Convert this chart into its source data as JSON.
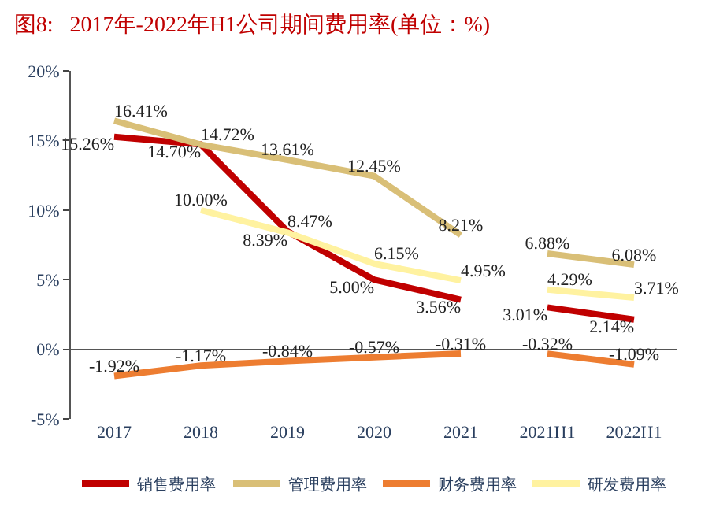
{
  "chart_data": {
    "type": "line",
    "title": "图8:   2017年-2022年H1公司期间费用率(单位：%)",
    "categories": [
      "2017",
      "2018",
      "2019",
      "2020",
      "2021",
      "2021H1",
      "2022H1"
    ],
    "series": [
      {
        "name": "销售费用率",
        "color": "#c00000",
        "values": [
          15.26,
          14.72,
          8.47,
          5.0,
          3.56,
          null,
          null
        ],
        "value_labels": [
          "15.26%",
          "14.72%",
          "8.47%",
          "5.00%",
          "3.56%",
          null,
          null
        ]
      },
      {
        "name": "管理费用率",
        "color": "#d9bf77",
        "values": [
          16.41,
          14.7,
          13.61,
          12.45,
          8.21,
          null,
          null
        ],
        "value_labels": [
          "16.41%",
          "14.70%",
          "13.61%",
          "12.45%",
          "8.21%",
          null,
          null
        ]
      },
      {
        "name": "财务费用率",
        "color": "#ed7d31",
        "values": [
          -1.92,
          -1.17,
          -0.84,
          -0.57,
          -0.31,
          null,
          null
        ],
        "value_labels": [
          "-1.92%",
          "-1.17%",
          "-0.84%",
          "-0.57%",
          "-0.31%",
          null,
          null
        ]
      },
      {
        "name": "研发费用率",
        "color": "#fff2a0",
        "values": [
          null,
          10.0,
          8.39,
          6.15,
          4.95,
          null,
          null
        ],
        "value_labels": [
          null,
          "10.00%",
          "8.39%",
          "6.15%",
          "4.95%",
          null,
          null
        ]
      },
      {
        "color": "#c00000",
        "values": [
          null,
          null,
          null,
          null,
          null,
          3.01,
          2.14
        ],
        "value_labels": [
          null,
          null,
          null,
          null,
          null,
          "3.01%",
          "2.14%"
        ]
      },
      {
        "color": "#d9bf77",
        "values": [
          null,
          null,
          null,
          null,
          null,
          6.88,
          6.08
        ],
        "value_labels": [
          null,
          null,
          null,
          null,
          null,
          "6.88%",
          "6.08%"
        ]
      },
      {
        "color": "#ed7d31",
        "values": [
          null,
          null,
          null,
          null,
          null,
          -0.32,
          -1.09
        ],
        "value_labels": [
          null,
          null,
          null,
          null,
          null,
          "-0.32%",
          "-1.09%"
        ]
      },
      {
        "color": "#fff2a0",
        "values": [
          null,
          null,
          null,
          null,
          null,
          4.29,
          3.71
        ],
        "value_labels": [
          null,
          null,
          null,
          null,
          null,
          "4.29%",
          "3.71%"
        ]
      }
    ],
    "ylim": [
      -5,
      20
    ],
    "yticks": [
      {
        "value": -5,
        "label": "-5%"
      },
      {
        "value": 0,
        "label": "0%"
      },
      {
        "value": 5,
        "label": "5%"
      },
      {
        "value": 10,
        "label": "10%"
      },
      {
        "value": 15,
        "label": "15%"
      },
      {
        "value": 20,
        "label": "20%"
      }
    ],
    "legend": "bottom",
    "marker": "none",
    "line_style": "solid"
  }
}
